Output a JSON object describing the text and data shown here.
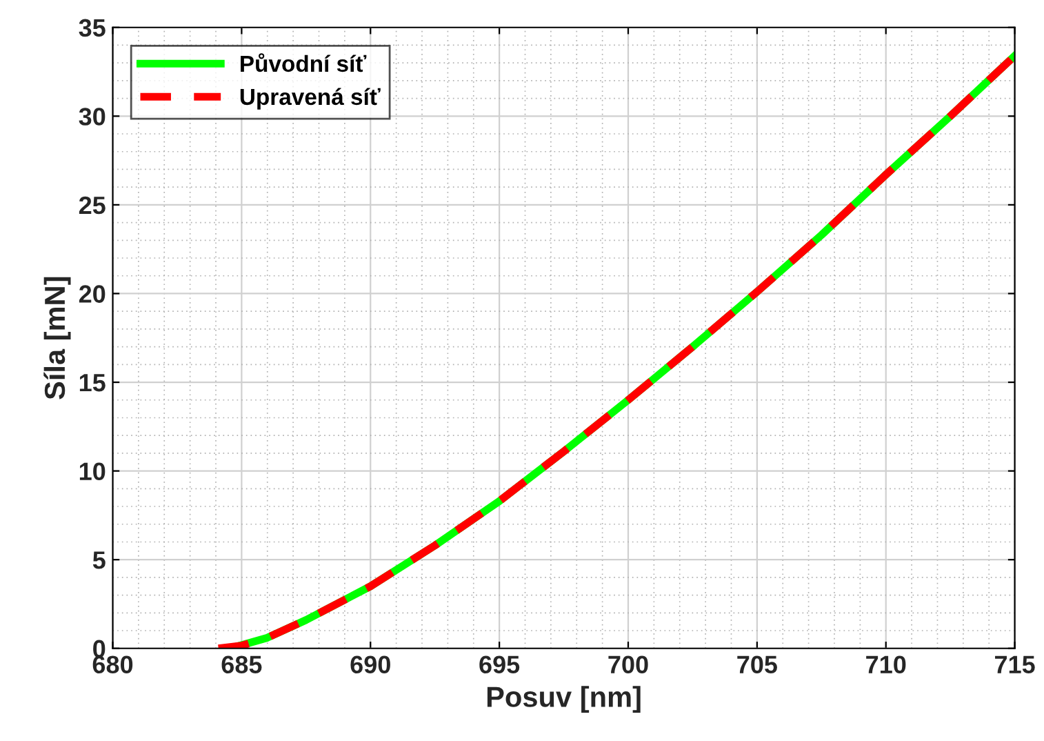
{
  "chart_data": {
    "type": "line",
    "xlabel": "Posuv [nm]",
    "ylabel": "Síla [mN]",
    "xlim": [
      680,
      715
    ],
    "xticks": [
      680,
      685,
      690,
      695,
      700,
      705,
      710,
      715
    ],
    "ylim": [
      0,
      35
    ],
    "yticks": [
      0,
      5,
      10,
      15,
      20,
      25,
      30,
      35
    ],
    "grid": true,
    "legend": "top left",
    "series": [
      {
        "name": "Původní síť",
        "color": "#00ff00",
        "line_style": "solid",
        "x": [
          684.8,
          686,
          687.5,
          690,
          692.5,
          695,
          697.5,
          700,
          702.5,
          705,
          707.5,
          710,
          712.5,
          715
        ],
        "values": [
          0.1,
          0.6,
          1.6,
          3.5,
          5.8,
          8.3,
          11.1,
          14,
          17,
          20.1,
          23.3,
          26.7,
          30,
          33.4
        ]
      },
      {
        "name": "Upravená síť",
        "color": "#ff0000",
        "line_style": "dashed",
        "x": [
          684.1,
          685,
          686,
          687.5,
          690,
          692.5,
          695,
          697.5,
          700,
          702.5,
          705,
          707.5,
          710,
          712.5,
          715
        ],
        "values": [
          0,
          0.15,
          0.6,
          1.6,
          3.5,
          5.8,
          8.3,
          11.1,
          14,
          17,
          20.1,
          23.3,
          26.7,
          30,
          33.4
        ]
      }
    ]
  }
}
